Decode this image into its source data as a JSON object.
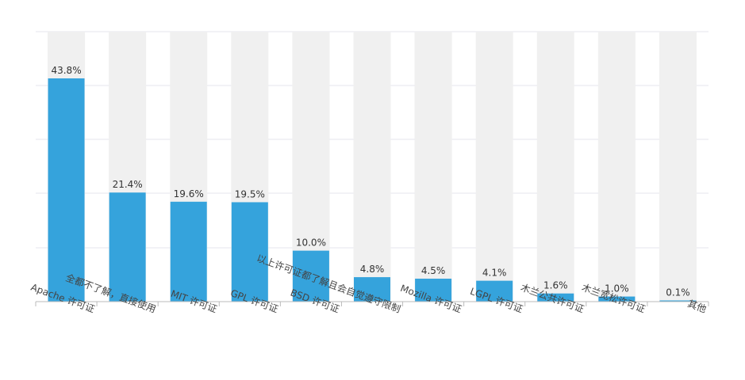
{
  "chart_data": {
    "type": "bar",
    "title": "",
    "xlabel": "",
    "ylabel": "",
    "ylim": [
      0,
      50
    ],
    "grid": true,
    "categories": [
      "Apache 许可证",
      "全都不了解，直接使用",
      "MIT 许可证",
      "GPL 许可证",
      "BSD 许可证",
      "以上许可证都了解且会自觉遵守限制",
      "Mozilla 许可证",
      "LGPL 许可证",
      "木兰公共许可证",
      "木兰宽松许可证",
      "其他"
    ],
    "values": [
      43.8,
      21.4,
      19.6,
      19.5,
      10.0,
      4.8,
      4.5,
      4.1,
      1.6,
      1.0,
      0.1
    ],
    "value_labels": [
      "43.8%",
      "21.4%",
      "19.6%",
      "19.5%",
      "10.0%",
      "4.8%",
      "4.5%",
      "4.1%",
      "1.6%",
      "1.0%",
      "0.1%"
    ],
    "colors": {
      "bar": "#35a3dc",
      "background_column": "#f0f0f0",
      "grid": "#e4e4ec",
      "axis": "#bbbbbb"
    }
  }
}
